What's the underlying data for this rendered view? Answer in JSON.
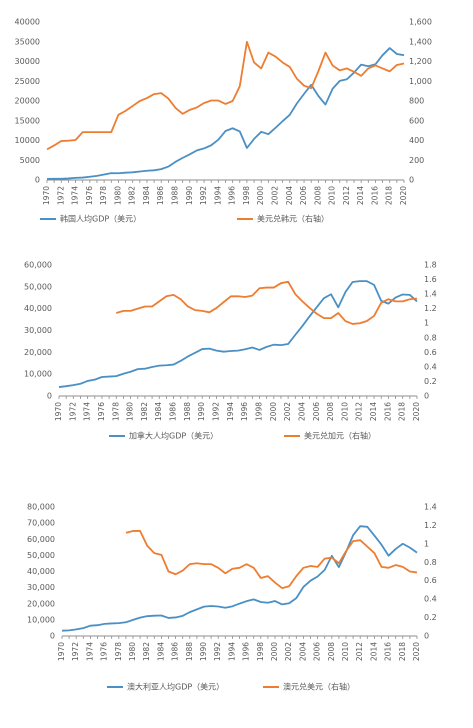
{
  "colors": {
    "gdp": "#4a90c4",
    "fx": "#ed7d31",
    "axis": "#8c8c8c",
    "text": "#595959",
    "grid": "#d9d9d9"
  },
  "chart_data": [
    {
      "type": "line",
      "x": [
        1970,
        1971,
        1972,
        1973,
        1974,
        1975,
        1976,
        1977,
        1978,
        1979,
        1980,
        1981,
        1982,
        1983,
        1984,
        1985,
        1986,
        1987,
        1988,
        1989,
        1990,
        1991,
        1992,
        1993,
        1994,
        1995,
        1996,
        1997,
        1998,
        1999,
        2000,
        2001,
        2002,
        2003,
        2004,
        2005,
        2006,
        2007,
        2008,
        2009,
        2010,
        2011,
        2012,
        2013,
        2014,
        2015,
        2016,
        2017,
        2018,
        2019,
        2020
      ],
      "xticks": [
        "1970",
        "1972",
        "1974",
        "1976",
        "1978",
        "1980",
        "1982",
        "1984",
        "1986",
        "1988",
        "1990",
        "1992",
        "1994",
        "1996",
        "1998",
        "2000",
        "2002",
        "2004",
        "2006",
        "2008",
        "2010",
        "2012",
        "2014",
        "2016",
        "2018",
        "2020"
      ],
      "ylim": [
        0,
        40000
      ],
      "yticks": [
        "0",
        "5000",
        "10000",
        "15000",
        "20000",
        "25000",
        "30000",
        "35000",
        "40000"
      ],
      "y2lim": [
        0,
        1600
      ],
      "y2ticks": [
        "0",
        "200",
        "400",
        "600",
        "800",
        "1,000",
        "1,200",
        "1,400",
        "1,600"
      ],
      "series": [
        {
          "name": "韩国人均GDP（美元）",
          "axis": "left",
          "values": [
            280,
            300,
            320,
            400,
            540,
            620,
            830,
            1050,
            1400,
            1750,
            1700,
            1850,
            1950,
            2150,
            2350,
            2450,
            2750,
            3400,
            4600,
            5600,
            6500,
            7500,
            8000,
            8800,
            10200,
            12400,
            13100,
            12300,
            8100,
            10400,
            12200,
            11600,
            13200,
            14900,
            16500,
            19400,
            21800,
            24100,
            21300,
            19100,
            23100,
            25100,
            25500,
            27200,
            29200,
            28800,
            29300,
            31600,
            33400,
            31900,
            31600
          ]
        },
        {
          "name": "美元兑韩元（右轴）",
          "axis": "right",
          "values": [
            310,
            350,
            395,
            398,
            405,
            485,
            485,
            485,
            485,
            485,
            660,
            700,
            750,
            800,
            830,
            870,
            880,
            825,
            730,
            670,
            710,
            735,
            780,
            805,
            805,
            770,
            800,
            950,
            1400,
            1190,
            1130,
            1290,
            1250,
            1190,
            1145,
            1025,
            955,
            930,
            1100,
            1290,
            1160,
            1110,
            1130,
            1095,
            1055,
            1130,
            1160,
            1130,
            1100,
            1165,
            1180
          ]
        }
      ]
    },
    {
      "type": "line",
      "x": [
        1970,
        1971,
        1972,
        1973,
        1974,
        1975,
        1976,
        1977,
        1978,
        1979,
        1980,
        1981,
        1982,
        1983,
        1984,
        1985,
        1986,
        1987,
        1988,
        1989,
        1990,
        1991,
        1992,
        1993,
        1994,
        1995,
        1996,
        1997,
        1998,
        1999,
        2000,
        2001,
        2002,
        2003,
        2004,
        2005,
        2006,
        2007,
        2008,
        2009,
        2010,
        2011,
        2012,
        2013,
        2014,
        2015,
        2016,
        2017,
        2018,
        2019,
        2020
      ],
      "xticks": [
        "1970",
        "1972",
        "1974",
        "1976",
        "1978",
        "1980",
        "1982",
        "1984",
        "1986",
        "1988",
        "1990",
        "1992",
        "1994",
        "1996",
        "1998",
        "2000",
        "2002",
        "2004",
        "2006",
        "2008",
        "2010",
        "2012",
        "2014",
        "2016",
        "2018",
        "2020"
      ],
      "ylim": [
        0,
        60000
      ],
      "yticks": [
        "0",
        "10,000",
        "20,000",
        "30,000",
        "40,000",
        "50,000",
        "60,000"
      ],
      "y2lim": [
        0,
        1.8
      ],
      "y2ticks": [
        "0",
        "0.2",
        "0.4",
        "0.6",
        "0.8",
        "1",
        "1.2",
        "1.4",
        "1.6",
        "1.8"
      ],
      "series": [
        {
          "name": "加拿大人均GDP（美元）",
          "axis": "left",
          "values": [
            4100,
            4500,
            5000,
            5600,
            6900,
            7500,
            8700,
            8900,
            9100,
            10200,
            11100,
            12300,
            12500,
            13300,
            13900,
            14100,
            14400,
            16100,
            18100,
            19800,
            21500,
            21700,
            20800,
            20300,
            20600,
            20800,
            21400,
            22200,
            21100,
            22500,
            23500,
            23300,
            23800,
            28000,
            32100,
            36500,
            40700,
            44800,
            46600,
            40600,
            47600,
            52200,
            52600,
            52600,
            50900,
            43600,
            42300,
            45100,
            46500,
            46300,
            43300
          ]
        },
        {
          "name": "美元兑加元（右轴）",
          "axis": "right",
          "values": [
            null,
            null,
            null,
            null,
            null,
            null,
            null,
            null,
            1.14,
            1.17,
            1.17,
            1.2,
            1.23,
            1.23,
            1.3,
            1.37,
            1.39,
            1.33,
            1.23,
            1.18,
            1.17,
            1.15,
            1.21,
            1.29,
            1.37,
            1.37,
            1.36,
            1.38,
            1.48,
            1.49,
            1.49,
            1.55,
            1.57,
            1.4,
            1.3,
            1.21,
            1.13,
            1.07,
            1.07,
            1.14,
            1.03,
            0.99,
            1.0,
            1.03,
            1.1,
            1.28,
            1.33,
            1.3,
            1.3,
            1.33,
            1.34
          ]
        }
      ]
    },
    {
      "type": "line",
      "x": [
        1970,
        1971,
        1972,
        1973,
        1974,
        1975,
        1976,
        1977,
        1978,
        1979,
        1980,
        1981,
        1982,
        1983,
        1984,
        1985,
        1986,
        1987,
        1988,
        1989,
        1990,
        1991,
        1992,
        1993,
        1994,
        1995,
        1996,
        1997,
        1998,
        1999,
        2000,
        2001,
        2002,
        2003,
        2004,
        2005,
        2006,
        2007,
        2008,
        2009,
        2010,
        2011,
        2012,
        2013,
        2014,
        2015,
        2016,
        2017,
        2018,
        2019,
        2020
      ],
      "xticks": [
        "1970",
        "1972",
        "1974",
        "1976",
        "1978",
        "1980",
        "1982",
        "1984",
        "1986",
        "1988",
        "1990",
        "1992",
        "1994",
        "1996",
        "1998",
        "2000",
        "2002",
        "2004",
        "2006",
        "2008",
        "2010",
        "2012",
        "2014",
        "2016",
        "2018",
        "2020"
      ],
      "ylim": [
        0,
        80000
      ],
      "yticks": [
        "0",
        "10,000",
        "20,000",
        "30,000",
        "40,000",
        "50,000",
        "60,000",
        "70,000",
        "80,000"
      ],
      "y2lim": [
        0,
        1.4
      ],
      "y2ticks": [
        "0",
        "0.2",
        "0.4",
        "0.6",
        "0.8",
        "1",
        "1.2",
        "1.4"
      ],
      "series": [
        {
          "name": "澳大利亚人均GDP（美元）",
          "axis": "left",
          "values": [
            3300,
            3500,
            4100,
            4900,
            6400,
            6700,
            7500,
            7800,
            8000,
            8500,
            10000,
            11400,
            12300,
            12600,
            12700,
            11200,
            11500,
            12500,
            14800,
            16500,
            18200,
            18600,
            18300,
            17500,
            18400,
            20100,
            21600,
            22700,
            21100,
            20600,
            21700,
            19600,
            20300,
            23500,
            30400,
            34300,
            36900,
            41000,
            49700,
            42700,
            52100,
            62500,
            68100,
            67700,
            62300,
            56600,
            49800,
            54000,
            57200,
            54800,
            51700
          ]
        },
        {
          "name": "澳元兑美元（右轴）",
          "axis": "right",
          "values": [
            null,
            null,
            null,
            null,
            null,
            null,
            null,
            null,
            null,
            1.12,
            1.14,
            1.14,
            0.98,
            0.9,
            0.88,
            0.7,
            0.67,
            0.71,
            0.78,
            0.79,
            0.78,
            0.78,
            0.74,
            0.68,
            0.73,
            0.74,
            0.78,
            0.74,
            0.63,
            0.65,
            0.58,
            0.52,
            0.54,
            0.65,
            0.74,
            0.76,
            0.75,
            0.84,
            0.85,
            0.79,
            0.92,
            1.03,
            1.04,
            0.97,
            0.9,
            0.75,
            0.74,
            0.77,
            0.75,
            0.7,
            0.69
          ]
        }
      ]
    }
  ]
}
